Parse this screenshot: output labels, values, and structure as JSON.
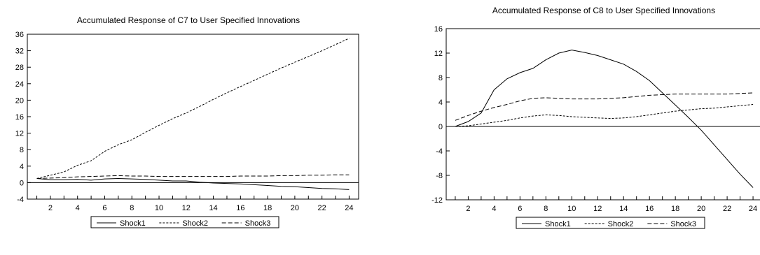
{
  "chart_data": [
    {
      "type": "line",
      "title": "Accumulated Response of C7 to User Specified Innovations",
      "xlabel": "",
      "ylabel": "",
      "x": [
        1,
        2,
        3,
        4,
        5,
        6,
        7,
        8,
        9,
        10,
        11,
        12,
        13,
        14,
        15,
        16,
        17,
        18,
        19,
        20,
        21,
        22,
        23,
        24
      ],
      "xticks": [
        "2",
        "4",
        "6",
        "8",
        "10",
        "12",
        "14",
        "16",
        "18",
        "20",
        "22",
        "24"
      ],
      "yticks": [
        "-4",
        "0",
        "4",
        "8",
        "12",
        "16",
        "20",
        "24",
        "28",
        "32",
        "36"
      ],
      "ylim": [
        -4,
        36
      ],
      "zero_line": true,
      "grid": false,
      "legend_position": "bottom",
      "series": [
        {
          "name": "Shock1",
          "style": "solid",
          "values": [
            1.0,
            0.7,
            0.7,
            0.8,
            0.6,
            0.9,
            1.0,
            0.9,
            0.8,
            0.6,
            0.4,
            0.4,
            0.1,
            -0.1,
            -0.2,
            -0.3,
            -0.5,
            -0.7,
            -0.9,
            -1.0,
            -1.2,
            -1.4,
            -1.5,
            -1.7
          ]
        },
        {
          "name": "Shock2",
          "style": "dotted",
          "values": [
            1.0,
            1.8,
            2.6,
            4.2,
            5.3,
            7.6,
            9.2,
            10.4,
            12.2,
            13.9,
            15.5,
            16.9,
            18.5,
            20.2,
            21.8,
            23.3,
            24.8,
            26.3,
            27.8,
            29.2,
            30.6,
            32.0,
            33.5,
            35.0
          ]
        },
        {
          "name": "Shock3",
          "style": "dashed",
          "values": [
            1.0,
            1.1,
            1.2,
            1.4,
            1.5,
            1.6,
            1.7,
            1.6,
            1.6,
            1.5,
            1.5,
            1.5,
            1.5,
            1.5,
            1.5,
            1.6,
            1.6,
            1.6,
            1.7,
            1.7,
            1.8,
            1.8,
            1.9,
            1.9
          ]
        }
      ]
    },
    {
      "type": "line",
      "title": "Accumulated Response of C8 to User Specified Innovations",
      "xlabel": "",
      "ylabel": "",
      "x": [
        1,
        2,
        3,
        4,
        5,
        6,
        7,
        8,
        9,
        10,
        11,
        12,
        13,
        14,
        15,
        16,
        17,
        18,
        19,
        20,
        21,
        22,
        23,
        24
      ],
      "xticks": [
        "2",
        "4",
        "6",
        "8",
        "10",
        "12",
        "14",
        "16",
        "18",
        "20",
        "22",
        "24"
      ],
      "yticks": [
        "-12",
        "-8",
        "-4",
        "0",
        "4",
        "8",
        "12",
        "16"
      ],
      "ylim": [
        -12,
        16
      ],
      "zero_line": true,
      "grid": false,
      "legend_position": "bottom",
      "series": [
        {
          "name": "Shock1",
          "style": "solid",
          "values": [
            0.0,
            0.8,
            2.2,
            6.0,
            7.8,
            8.8,
            9.5,
            10.9,
            12.0,
            12.5,
            12.1,
            11.6,
            10.9,
            10.2,
            9.0,
            7.5,
            5.5,
            3.5,
            1.5,
            -0.6,
            -3.0,
            -5.4,
            -7.8,
            -10.0
          ]
        },
        {
          "name": "Shock2",
          "style": "dotted",
          "values": [
            0.0,
            0.1,
            0.4,
            0.7,
            1.0,
            1.4,
            1.7,
            1.9,
            1.8,
            1.6,
            1.5,
            1.4,
            1.3,
            1.4,
            1.6,
            1.9,
            2.2,
            2.5,
            2.7,
            2.9,
            3.0,
            3.2,
            3.4,
            3.6
          ]
        },
        {
          "name": "Shock3",
          "style": "dashed",
          "values": [
            1.0,
            1.8,
            2.5,
            3.1,
            3.6,
            4.2,
            4.6,
            4.7,
            4.6,
            4.5,
            4.5,
            4.5,
            4.6,
            4.7,
            4.9,
            5.1,
            5.2,
            5.3,
            5.3,
            5.3,
            5.3,
            5.3,
            5.4,
            5.5
          ]
        }
      ]
    }
  ]
}
